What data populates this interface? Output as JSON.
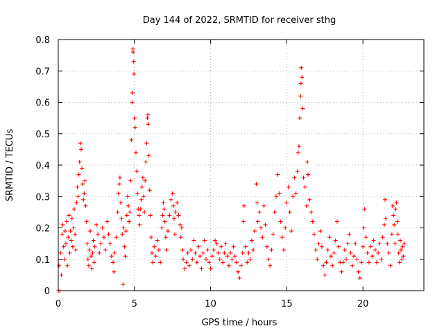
{
  "chart_data": {
    "type": "scatter",
    "title": "Day 144 of 2022, SRMTID for receiver sthg",
    "xlabel": "GPS time / hours",
    "ylabel": "SRMTID / TECUs",
    "xlim": [
      0,
      24
    ],
    "ylim": [
      0,
      0.8
    ],
    "xticks": [
      0,
      5,
      10,
      15,
      20
    ],
    "xtick_labels": [
      "0",
      "5",
      "10",
      "15",
      "20"
    ],
    "yticks": [
      0,
      0.1,
      0.2,
      0.3,
      0.4,
      0.5,
      0.6,
      0.7,
      0.8
    ],
    "ytick_labels": [
      "0",
      "0.1",
      "0.2",
      "0.3",
      "0.4",
      "0.5",
      "0.6",
      "0.7",
      "0.8"
    ],
    "grid": true,
    "marker": "+",
    "series": [
      {
        "name": "SRMTID",
        "color": "#ff0000",
        "points": [
          [
            0.0,
            0.0
          ],
          [
            0.05,
            0.08
          ],
          [
            0.1,
            0.0
          ],
          [
            0.15,
            0.12
          ],
          [
            0.2,
            0.05
          ],
          [
            0.25,
            0.18
          ],
          [
            0.3,
            0.21
          ],
          [
            0.35,
            0.14
          ],
          [
            0.4,
            0.1
          ],
          [
            0.45,
            0.19
          ],
          [
            0.5,
            0.15
          ],
          [
            0.55,
            0.22
          ],
          [
            0.6,
            0.08
          ],
          [
            0.65,
            0.17
          ],
          [
            0.7,
            0.24
          ],
          [
            0.75,
            0.12
          ],
          [
            0.8,
            0.19
          ],
          [
            0.85,
            0.16
          ],
          [
            0.9,
            0.23
          ],
          [
            0.95,
            0.14
          ],
          [
            1.0,
            0.2
          ],
          [
            1.05,
            0.26
          ],
          [
            1.1,
            0.18
          ],
          [
            1.15,
            0.13
          ],
          [
            1.2,
            0.28
          ],
          [
            1.25,
            0.33
          ],
          [
            1.3,
            0.3
          ],
          [
            1.35,
            0.37
          ],
          [
            1.4,
            0.41
          ],
          [
            1.45,
            0.47
          ],
          [
            1.5,
            0.45
          ],
          [
            1.55,
            0.39
          ],
          [
            1.6,
            0.34
          ],
          [
            1.65,
            0.29
          ],
          [
            1.7,
            0.31
          ],
          [
            1.75,
            0.35
          ],
          [
            1.8,
            0.27
          ],
          [
            1.85,
            0.22
          ],
          [
            1.9,
            0.15
          ],
          [
            1.95,
            0.1
          ],
          [
            2.0,
            0.08
          ],
          [
            2.05,
            0.13
          ],
          [
            2.1,
            0.19
          ],
          [
            2.15,
            0.11
          ],
          [
            2.2,
            0.07
          ],
          [
            2.25,
            0.12
          ],
          [
            2.3,
            0.16
          ],
          [
            2.35,
            0.09
          ],
          [
            2.4,
            0.14
          ],
          [
            2.5,
            0.21
          ],
          [
            2.6,
            0.18
          ],
          [
            2.7,
            0.12
          ],
          [
            2.8,
            0.15
          ],
          [
            2.9,
            0.2
          ],
          [
            3.0,
            0.17
          ],
          [
            3.1,
            0.13
          ],
          [
            3.2,
            0.22
          ],
          [
            3.3,
            0.18
          ],
          [
            3.4,
            0.15
          ],
          [
            3.5,
            0.11
          ],
          [
            3.6,
            0.09
          ],
          [
            3.65,
            0.06
          ],
          [
            3.7,
            0.12
          ],
          [
            3.8,
            0.17
          ],
          [
            3.9,
            0.25
          ],
          [
            3.95,
            0.31
          ],
          [
            4.0,
            0.34
          ],
          [
            4.05,
            0.36
          ],
          [
            4.1,
            0.28
          ],
          [
            4.15,
            0.23
          ],
          [
            4.2,
            0.18
          ],
          [
            4.25,
            0.02
          ],
          [
            4.3,
            0.2
          ],
          [
            4.35,
            0.14
          ],
          [
            4.4,
            0.11
          ],
          [
            4.45,
            0.19
          ],
          [
            4.5,
            0.24
          ],
          [
            4.55,
            0.3
          ],
          [
            4.6,
            0.27
          ],
          [
            4.65,
            0.22
          ],
          [
            4.7,
            0.25
          ],
          [
            4.75,
            0.35
          ],
          [
            4.8,
            0.48
          ],
          [
            4.85,
            0.6
          ],
          [
            4.87,
            0.63
          ],
          [
            4.9,
            0.77
          ],
          [
            4.92,
            0.76
          ],
          [
            4.95,
            0.73
          ],
          [
            4.97,
            0.69
          ],
          [
            5.0,
            0.55
          ],
          [
            5.05,
            0.52
          ],
          [
            5.1,
            0.44
          ],
          [
            5.15,
            0.38
          ],
          [
            5.2,
            0.31
          ],
          [
            5.25,
            0.26
          ],
          [
            5.3,
            0.24
          ],
          [
            5.35,
            0.21
          ],
          [
            5.4,
            0.26
          ],
          [
            5.45,
            0.29
          ],
          [
            5.5,
            0.33
          ],
          [
            5.55,
            0.36
          ],
          [
            5.6,
            0.3
          ],
          [
            5.65,
            0.25
          ],
          [
            5.7,
            0.35
          ],
          [
            5.75,
            0.41
          ],
          [
            5.8,
            0.47
          ],
          [
            5.85,
            0.55
          ],
          [
            5.88,
            0.56
          ],
          [
            5.9,
            0.53
          ],
          [
            5.95,
            0.43
          ],
          [
            6.0,
            0.32
          ],
          [
            6.05,
            0.24
          ],
          [
            6.1,
            0.17
          ],
          [
            6.15,
            0.12
          ],
          [
            6.2,
            0.09
          ],
          [
            6.3,
            0.14
          ],
          [
            6.4,
            0.11
          ],
          [
            6.5,
            0.16
          ],
          [
            6.6,
            0.13
          ],
          [
            6.7,
            0.09
          ],
          [
            6.8,
            0.2
          ],
          [
            6.85,
            0.24
          ],
          [
            6.9,
            0.28
          ],
          [
            6.95,
            0.26
          ],
          [
            7.0,
            0.22
          ],
          [
            7.05,
            0.17
          ],
          [
            7.1,
            0.13
          ],
          [
            7.2,
            0.19
          ],
          [
            7.3,
            0.24
          ],
          [
            7.4,
            0.29
          ],
          [
            7.5,
            0.31
          ],
          [
            7.55,
            0.27
          ],
          [
            7.6,
            0.23
          ],
          [
            7.65,
            0.18
          ],
          [
            7.7,
            0.25
          ],
          [
            7.8,
            0.28
          ],
          [
            7.9,
            0.24
          ],
          [
            8.0,
            0.21
          ],
          [
            8.05,
            0.17
          ],
          [
            8.1,
            0.2
          ],
          [
            8.15,
            0.13
          ],
          [
            8.2,
            0.1
          ],
          [
            8.3,
            0.07
          ],
          [
            8.4,
            0.09
          ],
          [
            8.5,
            0.12
          ],
          [
            8.6,
            0.08
          ],
          [
            8.7,
            0.13
          ],
          [
            8.8,
            0.1
          ],
          [
            8.9,
            0.16
          ],
          [
            9.0,
            0.12
          ],
          [
            9.1,
            0.09
          ],
          [
            9.2,
            0.14
          ],
          [
            9.3,
            0.11
          ],
          [
            9.4,
            0.07
          ],
          [
            9.5,
            0.12
          ],
          [
            9.6,
            0.16
          ],
          [
            9.7,
            0.1
          ],
          [
            9.8,
            0.13
          ],
          [
            9.9,
            0.09
          ],
          [
            10.0,
            0.07
          ],
          [
            10.1,
            0.11
          ],
          [
            10.2,
            0.13
          ],
          [
            10.3,
            0.16
          ],
          [
            10.4,
            0.15
          ],
          [
            10.5,
            0.12
          ],
          [
            10.6,
            0.1
          ],
          [
            10.7,
            0.14
          ],
          [
            10.8,
            0.09
          ],
          [
            10.9,
            0.12
          ],
          [
            11.0,
            0.15
          ],
          [
            11.1,
            0.11
          ],
          [
            11.2,
            0.08
          ],
          [
            11.3,
            0.12
          ],
          [
            11.4,
            0.1
          ],
          [
            11.5,
            0.14
          ],
          [
            11.6,
            0.11
          ],
          [
            11.7,
            0.09
          ],
          [
            11.8,
            0.06
          ],
          [
            11.9,
            0.04
          ],
          [
            12.0,
            0.08
          ],
          [
            12.1,
            0.12
          ],
          [
            12.15,
            0.22
          ],
          [
            12.2,
            0.27
          ],
          [
            12.3,
            0.14
          ],
          [
            12.4,
            0.09
          ],
          [
            12.5,
            0.12
          ],
          [
            12.6,
            0.1
          ],
          [
            12.7,
            0.16
          ],
          [
            12.8,
            0.13
          ],
          [
            12.9,
            0.19
          ],
          [
            13.0,
            0.34
          ],
          [
            13.05,
            0.28
          ],
          [
            13.1,
            0.22
          ],
          [
            13.2,
            0.25
          ],
          [
            13.3,
            0.2
          ],
          [
            13.4,
            0.17
          ],
          [
            13.5,
            0.27
          ],
          [
            13.6,
            0.21
          ],
          [
            13.7,
            0.14
          ],
          [
            13.8,
            0.1
          ],
          [
            13.9,
            0.08
          ],
          [
            14.0,
            0.13
          ],
          [
            14.1,
            0.18
          ],
          [
            14.2,
            0.25
          ],
          [
            14.3,
            0.3
          ],
          [
            14.4,
            0.37
          ],
          [
            14.5,
            0.31
          ],
          [
            14.6,
            0.22
          ],
          [
            14.7,
            0.17
          ],
          [
            14.8,
            0.13
          ],
          [
            14.9,
            0.2
          ],
          [
            15.0,
            0.28
          ],
          [
            15.1,
            0.33
          ],
          [
            15.2,
            0.25
          ],
          [
            15.3,
            0.19
          ],
          [
            15.4,
            0.3
          ],
          [
            15.5,
            0.36
          ],
          [
            15.6,
            0.31
          ],
          [
            15.7,
            0.38
          ],
          [
            15.75,
            0.44
          ],
          [
            15.8,
            0.46
          ],
          [
            15.85,
            0.55
          ],
          [
            15.9,
            0.62
          ],
          [
            15.93,
            0.66
          ],
          [
            15.95,
            0.71
          ],
          [
            16.0,
            0.68
          ],
          [
            16.05,
            0.58
          ],
          [
            16.1,
            0.36
          ],
          [
            16.2,
            0.33
          ],
          [
            16.3,
            0.27
          ],
          [
            16.35,
            0.41
          ],
          [
            16.4,
            0.37
          ],
          [
            16.5,
            0.29
          ],
          [
            16.6,
            0.25
          ],
          [
            16.7,
            0.22
          ],
          [
            16.8,
            0.18
          ],
          [
            16.9,
            0.13
          ],
          [
            17.0,
            0.1
          ],
          [
            17.1,
            0.15
          ],
          [
            17.2,
            0.19
          ],
          [
            17.3,
            0.14
          ],
          [
            17.4,
            0.08
          ],
          [
            17.5,
            0.05
          ],
          [
            17.6,
            0.09
          ],
          [
            17.7,
            0.13
          ],
          [
            17.8,
            0.17
          ],
          [
            17.9,
            0.11
          ],
          [
            18.0,
            0.08
          ],
          [
            18.1,
            0.12
          ],
          [
            18.2,
            0.16
          ],
          [
            18.3,
            0.22
          ],
          [
            18.4,
            0.14
          ],
          [
            18.5,
            0.09
          ],
          [
            18.6,
            0.06
          ],
          [
            18.7,
            0.09
          ],
          [
            18.8,
            0.13
          ],
          [
            18.9,
            0.1
          ],
          [
            19.0,
            0.15
          ],
          [
            19.1,
            0.18
          ],
          [
            19.2,
            0.12
          ],
          [
            19.3,
            0.08
          ],
          [
            19.4,
            0.11
          ],
          [
            19.5,
            0.15
          ],
          [
            19.6,
            0.1
          ],
          [
            19.7,
            0.06
          ],
          [
            19.8,
            0.04
          ],
          [
            19.9,
            0.09
          ],
          [
            20.0,
            0.14
          ],
          [
            20.05,
            0.2
          ],
          [
            20.1,
            0.26
          ],
          [
            20.2,
            0.17
          ],
          [
            20.3,
            0.12
          ],
          [
            20.4,
            0.09
          ],
          [
            20.5,
            0.14
          ],
          [
            20.6,
            0.11
          ],
          [
            20.7,
            0.16
          ],
          [
            20.8,
            0.13
          ],
          [
            20.9,
            0.09
          ],
          [
            21.0,
            0.12
          ],
          [
            21.1,
            0.15
          ],
          [
            21.2,
            0.1
          ],
          [
            21.3,
            0.17
          ],
          [
            21.4,
            0.21
          ],
          [
            21.45,
            0.29
          ],
          [
            21.5,
            0.23
          ],
          [
            21.6,
            0.15
          ],
          [
            21.7,
            0.12
          ],
          [
            21.8,
            0.08
          ],
          [
            21.9,
            0.18
          ],
          [
            21.95,
            0.27
          ],
          [
            22.0,
            0.24
          ],
          [
            22.05,
            0.21
          ],
          [
            22.1,
            0.15
          ],
          [
            22.15,
            0.26
          ],
          [
            22.2,
            0.28
          ],
          [
            22.25,
            0.22
          ],
          [
            22.3,
            0.18
          ],
          [
            22.35,
            0.12
          ],
          [
            22.4,
            0.09
          ],
          [
            22.45,
            0.16
          ],
          [
            22.5,
            0.13
          ],
          [
            22.55,
            0.1
          ],
          [
            22.6,
            0.14
          ],
          [
            22.65,
            0.11
          ],
          [
            22.7,
            0.15
          ]
        ]
      }
    ]
  }
}
